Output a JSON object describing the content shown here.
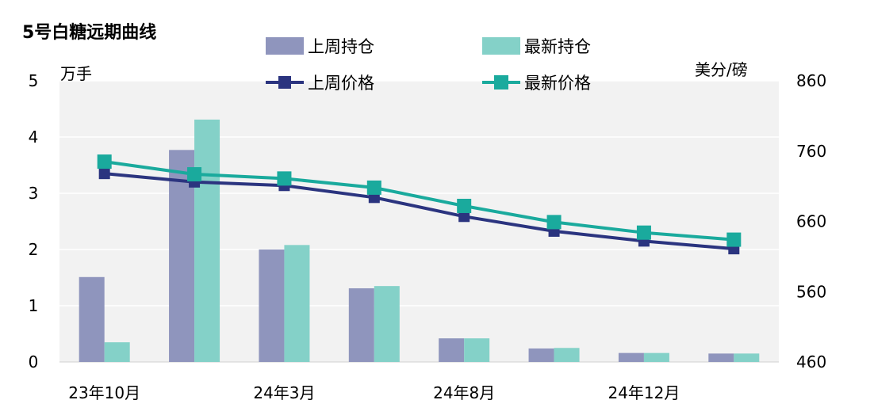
{
  "chart_data": {
    "type": "bar+line",
    "title": "5号白糖远期曲线",
    "y_left": {
      "label": "万手",
      "min": 0,
      "max": 5,
      "ticks": [
        0,
        1,
        2,
        3,
        4,
        5
      ]
    },
    "y_right": {
      "label": "美分/磅",
      "min": 460,
      "max": 860,
      "ticks": [
        460,
        560,
        660,
        760,
        860
      ]
    },
    "x_tick_labels": [
      "23年10月",
      "",
      "24年3月",
      "",
      "24年8月",
      "",
      "24年12月",
      ""
    ],
    "bar_series": [
      {
        "name": "上周持仓",
        "color": "#8f95bd",
        "values": [
          1.51,
          3.77,
          2.0,
          1.31,
          0.42,
          0.24,
          0.16,
          0.15
        ]
      },
      {
        "name": "最新持仓",
        "color": "#84d1c8",
        "values": [
          0.35,
          4.31,
          2.08,
          1.35,
          0.42,
          0.25,
          0.16,
          0.15
        ]
      }
    ],
    "line_series": [
      {
        "name": "上周价格",
        "color": "#2b347f",
        "values": [
          728,
          716,
          711,
          694,
          667,
          646,
          632,
          621
        ]
      },
      {
        "name": "最新价格",
        "color": "#1aaa9d",
        "values": [
          745,
          727,
          721,
          708,
          682,
          659,
          644,
          634
        ]
      }
    ],
    "grid": true,
    "legend_position": "top-center"
  }
}
